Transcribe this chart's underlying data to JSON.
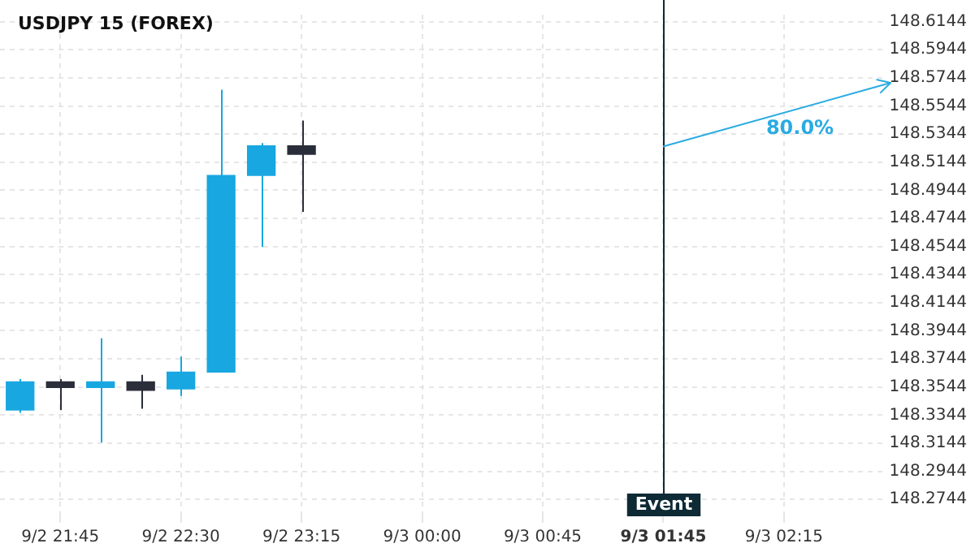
{
  "chart_data": {
    "type": "candlestick",
    "title": "USDJPY 15 (FOREX)",
    "categories": [
      null,
      "9/2 21:45",
      null,
      null,
      "9/2 22:30",
      null,
      null,
      "9/2 23:15",
      null,
      null,
      "9/3 00:00",
      null,
      null,
      "9/3 00:45",
      null,
      null,
      "9/3 01:45",
      null,
      null,
      "9/3 02:15",
      null,
      null
    ],
    "ohlc": [
      [
        148.338,
        148.36,
        148.336,
        148.358
      ],
      [
        148.358,
        148.36,
        148.338,
        148.354
      ],
      [
        148.354,
        148.389,
        148.315,
        148.358
      ],
      [
        148.358,
        148.363,
        148.339,
        148.352
      ],
      [
        148.353,
        148.376,
        148.348,
        148.365
      ],
      [
        148.365,
        148.566,
        148.365,
        148.505
      ],
      [
        148.505,
        148.528,
        148.454,
        148.526
      ],
      [
        148.526,
        148.544,
        148.479,
        148.52
      ],
      null,
      null,
      null,
      null,
      null,
      null,
      null,
      null,
      null,
      null,
      null,
      null,
      null,
      null
    ],
    "colors": [
      "#18a7e0",
      "#2a2d3a",
      "#18a7e0",
      "#2a2d3a",
      "#18a7e0",
      "#18a7e0",
      "#18a7e0",
      "#2a2d3a",
      null,
      null,
      null,
      null,
      null,
      null,
      null,
      null,
      null,
      null,
      null,
      null,
      null,
      null
    ],
    "ylim": [
      148.2624,
      148.6194
    ],
    "yticks": [
      148.2744,
      148.2944,
      148.3144,
      148.3344,
      148.3544,
      148.3744,
      148.3944,
      148.4144,
      148.4344,
      148.4544,
      148.4744,
      148.4944,
      148.5144,
      148.5344,
      148.5544,
      148.5744,
      148.5944,
      148.6144
    ],
    "grid": true,
    "ref_lines": [
      {
        "axis": "x",
        "value": "9/3 01:45",
        "label": "Event",
        "color": "#0d2a35"
      }
    ],
    "annotations": [
      "80.0%"
    ]
  }
}
